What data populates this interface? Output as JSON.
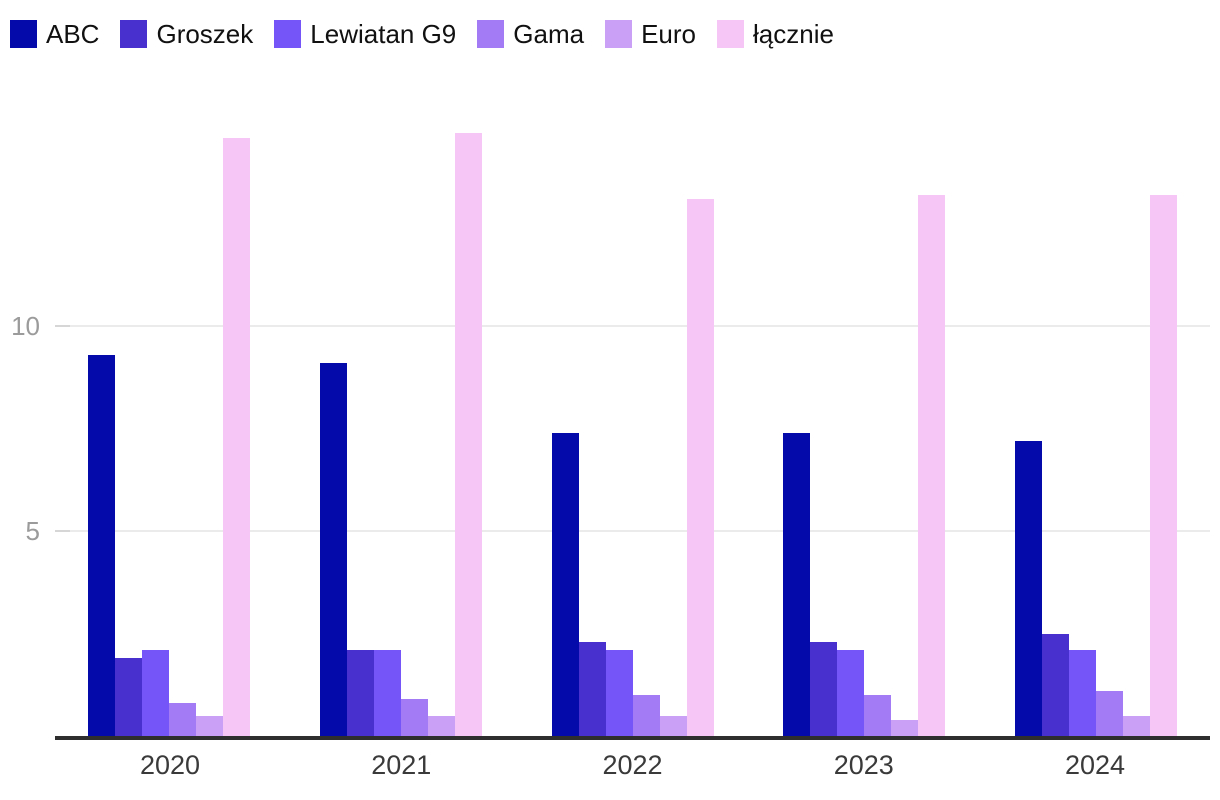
{
  "chart_data": {
    "type": "bar",
    "title": "",
    "xlabel": "",
    "ylabel": "",
    "categories": [
      "2020",
      "2021",
      "2022",
      "2023",
      "2024"
    ],
    "series": [
      {
        "name": "ABC",
        "color": "#0409a9",
        "values": [
          9.3,
          9.1,
          7.4,
          7.4,
          7.2
        ]
      },
      {
        "name": "Groszek",
        "color": "#4730cd",
        "values": [
          1.9,
          2.1,
          2.3,
          2.3,
          2.5
        ]
      },
      {
        "name": "Lewiatan G9",
        "color": "#7655f8",
        "values": [
          2.1,
          2.1,
          2.1,
          2.1,
          2.1
        ]
      },
      {
        "name": "Gama",
        "color": "#a37bf5",
        "values": [
          0.8,
          0.9,
          1.0,
          1.0,
          1.1
        ]
      },
      {
        "name": "Euro",
        "color": "#c9a0f6",
        "values": [
          0.5,
          0.5,
          0.5,
          0.4,
          0.5
        ]
      },
      {
        "name": "łącznie",
        "color": "#f6c7f6",
        "values": [
          14.6,
          14.7,
          13.1,
          13.2,
          13.2
        ]
      }
    ],
    "yticks": [
      5,
      10
    ],
    "ylim": [
      0,
      15.37
    ],
    "grid": true,
    "legend_position": "top-left",
    "colors": {
      "gridline": "#ebebeb",
      "axis_line": "#2e2e2e",
      "ytick_text": "#9b9b9b",
      "xtick_text": "#3a3a3a",
      "legend_text": "#111111",
      "background": "#ffffff"
    }
  }
}
